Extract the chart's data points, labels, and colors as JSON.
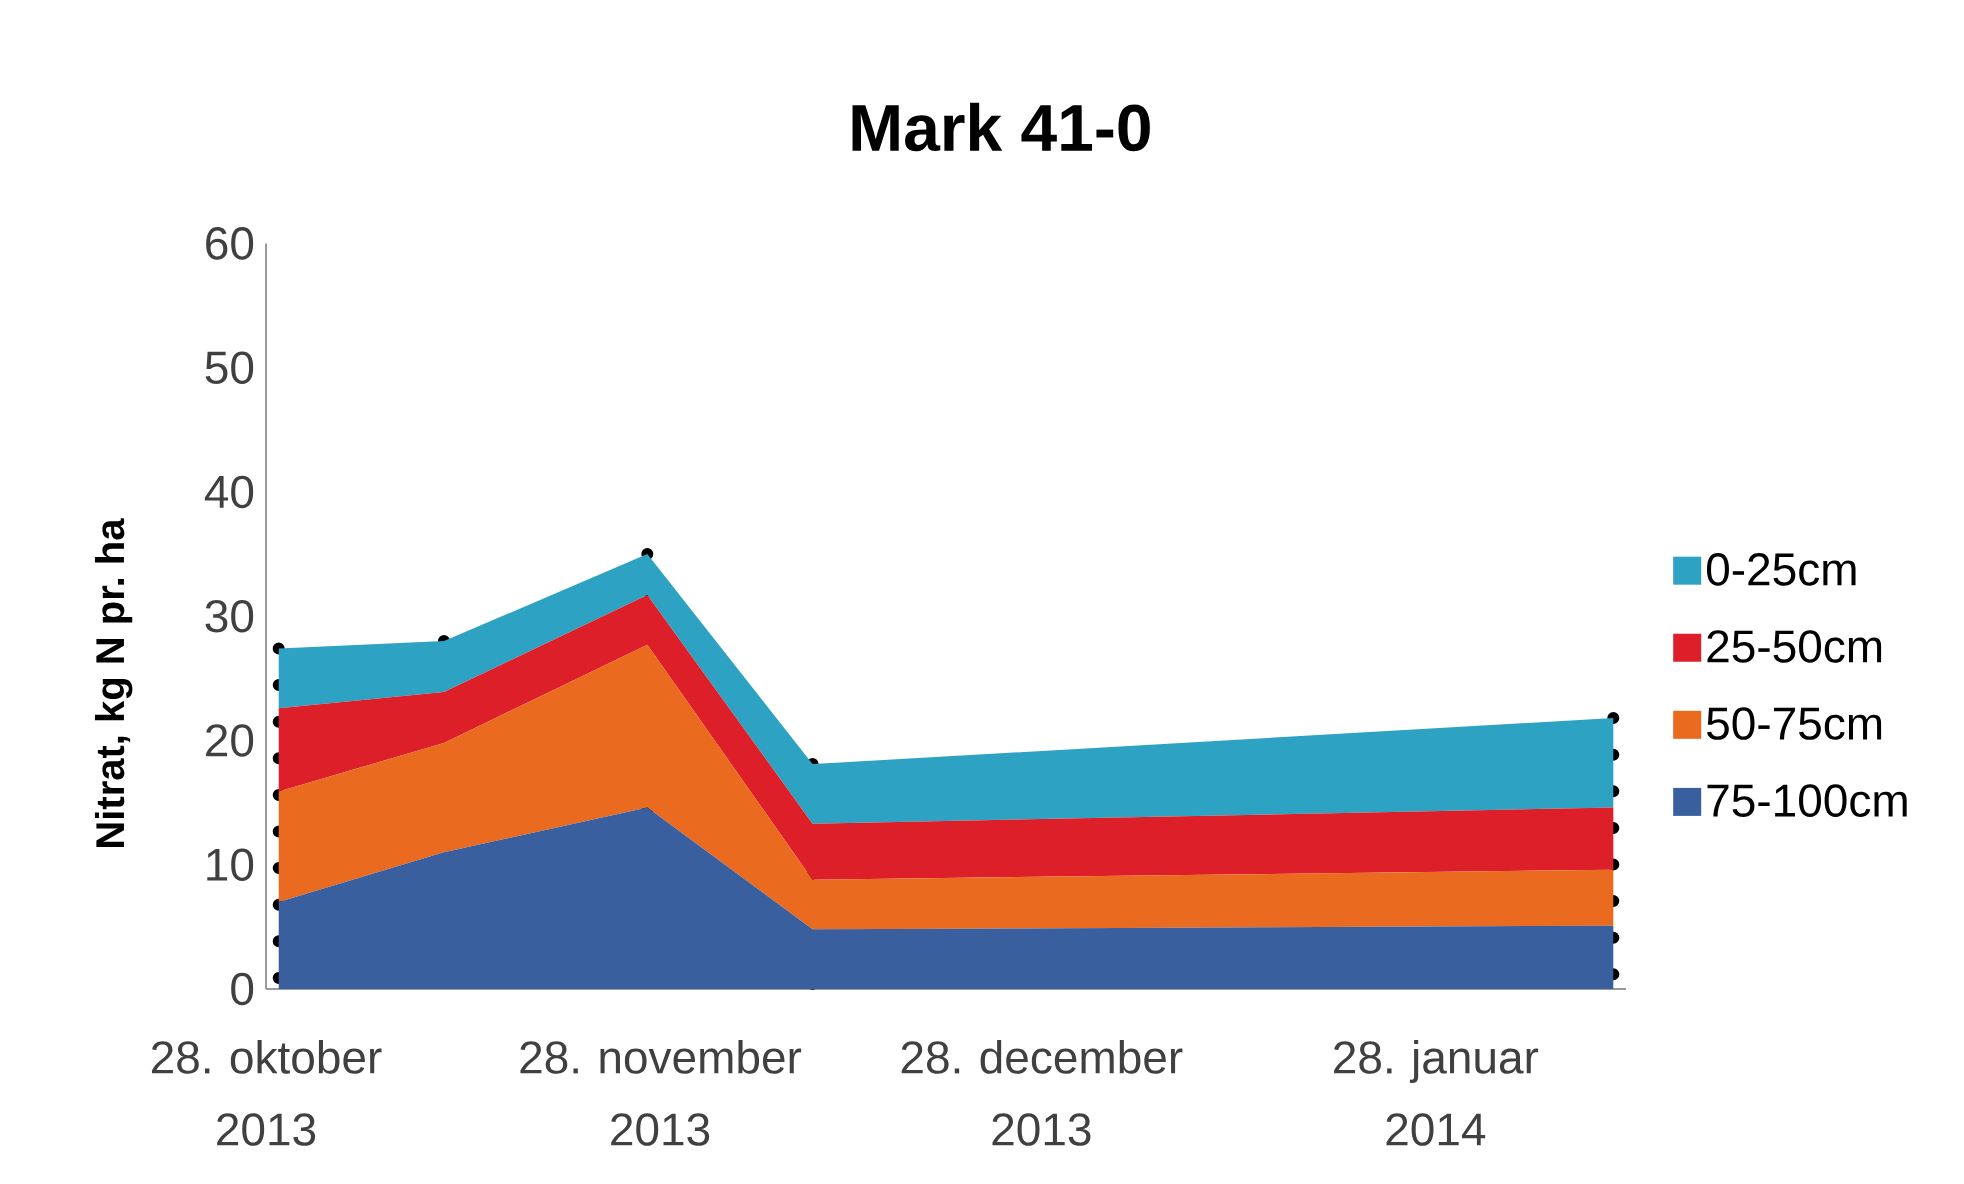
{
  "chart_data": {
    "type": "area",
    "title": "Mark 41-0",
    "ylabel": "Nitrat, kg N pr. ha",
    "x": [
      "2013-10-29",
      "2013-11-11",
      "2013-11-27",
      "2013-12-10",
      "2014-02-11"
    ],
    "series": [
      {
        "name": "75-100cm",
        "color": "#3a5f9e",
        "values": [
          7.0,
          11.0,
          14.6,
          4.8,
          5.1
        ]
      },
      {
        "name": "50-75cm",
        "color": "#ea6a1f",
        "values": [
          8.9,
          8.8,
          13.1,
          4.0,
          4.5
        ]
      },
      {
        "name": "25-50cm",
        "color": "#dd1f2a",
        "values": [
          6.7,
          4.1,
          4.0,
          4.5,
          5.0
        ]
      },
      {
        "name": "0-25cm",
        "color": "#2ea2c2",
        "values": [
          4.8,
          4.1,
          3.3,
          4.8,
          7.2
        ]
      }
    ],
    "stacked": true,
    "xlim": [
      "2013-10-28",
      "2014-02-12"
    ],
    "xticks": [
      {
        "value": "2013-10-28",
        "label": "28. oktober 2013"
      },
      {
        "value": "2013-11-28",
        "label": "28. november 2013"
      },
      {
        "value": "2013-12-28",
        "label": "28. december 2013"
      },
      {
        "value": "2014-01-28",
        "label": "28. januar 2014"
      }
    ],
    "ylim": [
      0,
      60
    ],
    "yticks": [
      0,
      10,
      20,
      30,
      40,
      50,
      60
    ],
    "legend": "right",
    "ref_lines": [
      {
        "axis": "x",
        "value": "2013-10-29",
        "color": "#000000",
        "line_style": "dotted"
      },
      {
        "axis": "x",
        "value": "2013-11-11",
        "color": "#000000",
        "line_style": "dotted"
      },
      {
        "axis": "x",
        "value": "2013-11-27",
        "color": "#000000",
        "line_style": "dotted"
      },
      {
        "axis": "x",
        "value": "2013-12-10",
        "color": "#000000",
        "line_style": "dotted"
      },
      {
        "axis": "x",
        "value": "2014-02-11",
        "color": "#000000",
        "line_style": "dotted"
      }
    ]
  }
}
